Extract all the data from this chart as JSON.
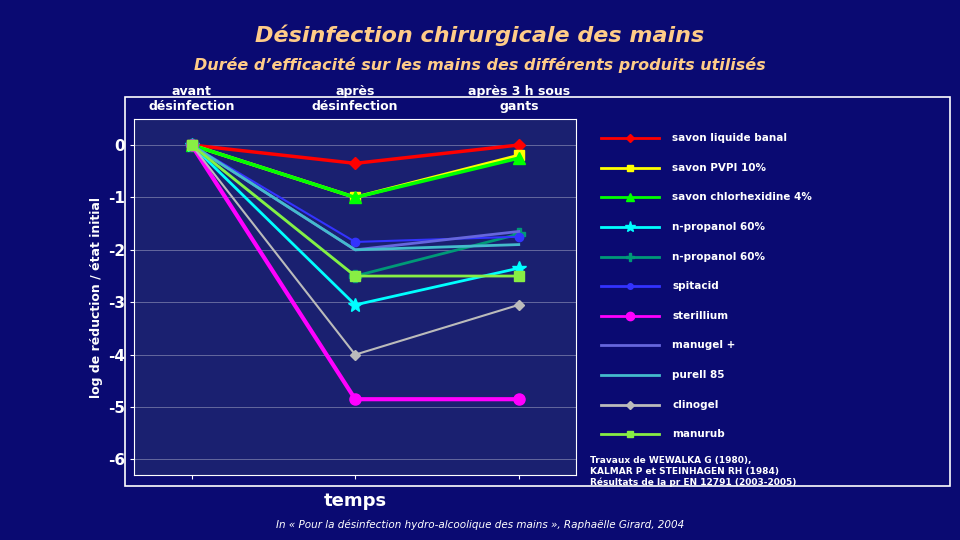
{
  "title": "Désinfection chirurgicale des mains",
  "subtitle": "Durée d’efficacité sur les mains des différents produits utilisés",
  "footnote": "In « Pour la désinfection hydro-alcoolique des mains », Raphaëlle Girard, 2004",
  "xlabel": "temps",
  "ylabel": "log de réduction / état initial",
  "col_labels": [
    "avant\ndésinfection",
    "après\ndésinfection",
    "après 3 h sous\ngants"
  ],
  "x_positions": [
    0,
    1,
    2
  ],
  "ylim": [
    -6.3,
    0.5
  ],
  "yticks": [
    0,
    -1,
    -2,
    -3,
    -4,
    -5,
    -6
  ],
  "ytick_labels": [
    "0",
    "-1",
    "-2",
    "-3",
    "-4",
    "-5",
    "-6"
  ],
  "bg_outer": "#0a0a72",
  "bg_axes": "#1a2070",
  "reference_text": "Travaux de WEWALKA G (1980),\nKALMAR P et STEINHAGEN RH (1984)\nRésultats de la pr EN 12791 (2003-2005)",
  "title_color": "#ffcc88",
  "text_color": "#ffffff",
  "series": [
    {
      "label": "savon liquide banal",
      "color": "#ff0000",
      "marker": "D",
      "markersize": 6,
      "linewidth": 2.5,
      "values": [
        0,
        -0.35,
        0.0
      ]
    },
    {
      "label": "savon PVPI 10%",
      "color": "#ffff00",
      "marker": "s",
      "markersize": 7,
      "linewidth": 2.5,
      "values": [
        0,
        -1.0,
        -0.2
      ]
    },
    {
      "label": "savon chlorhexidine 4%",
      "color": "#00ff00",
      "marker": "^",
      "markersize": 8,
      "linewidth": 2.5,
      "values": [
        0,
        -1.0,
        -0.25
      ]
    },
    {
      "label": "n-propanol 60%",
      "color": "#00ffff",
      "marker": "*",
      "markersize": 10,
      "linewidth": 2.0,
      "values": [
        0,
        -3.05,
        -2.35
      ]
    },
    {
      "label": "n-propanol 60%",
      "color": "#009977",
      "marker": "P",
      "markersize": 8,
      "linewidth": 2.0,
      "values": [
        0,
        -2.5,
        -1.7
      ]
    },
    {
      "label": "spitacid",
      "color": "#3333ff",
      "marker": "o",
      "markersize": 6,
      "linewidth": 1.5,
      "values": [
        0,
        -1.85,
        -1.75
      ]
    },
    {
      "label": "sterillium",
      "color": "#ff00ff",
      "marker": "o",
      "markersize": 8,
      "linewidth": 3.0,
      "values": [
        0,
        -4.85,
        -4.85
      ]
    },
    {
      "label": "manugel +",
      "color": "#6666dd",
      "marker": null,
      "markersize": 6,
      "linewidth": 2.0,
      "values": [
        0,
        -2.0,
        -1.65
      ]
    },
    {
      "label": "purell 85",
      "color": "#44bbcc",
      "marker": null,
      "markersize": 6,
      "linewidth": 2.0,
      "values": [
        0,
        -2.0,
        -1.9
      ]
    },
    {
      "label": "clinogel",
      "color": "#bbbbbb",
      "marker": "D",
      "markersize": 5,
      "linewidth": 1.5,
      "values": [
        0,
        -4.0,
        -3.05
      ]
    },
    {
      "label": "manurub",
      "color": "#88ee44",
      "marker": "s",
      "markersize": 7,
      "linewidth": 2.0,
      "values": [
        0,
        -2.5,
        -2.5
      ]
    }
  ]
}
